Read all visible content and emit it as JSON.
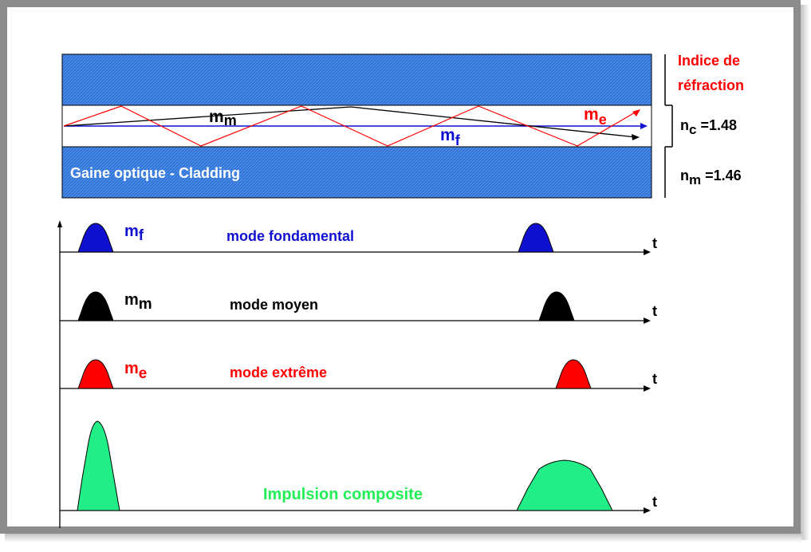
{
  "fiber": {
    "cladding_label": "Gaine optique - Cladding",
    "mode_m": "m",
    "mode_m_sub": "m",
    "mode_f": "m",
    "mode_f_sub": "f",
    "mode_e": "m",
    "mode_e_sub": "e"
  },
  "index": {
    "title_line1": "Indice de",
    "title_line2": "réfraction",
    "core_n": "n",
    "core_sub": "c",
    "core_value": " =1.48",
    "clad_n": "n",
    "clad_sub": "m",
    "clad_value": " =1.46"
  },
  "timelines": {
    "axis_label": "t",
    "fund_sym": "m",
    "fund_sub": "f",
    "fund_label": "mode fondamental",
    "mid_sym": "m",
    "mid_sub": "m",
    "mid_label": "mode moyen",
    "ext_sym": "m",
    "ext_sub": "e",
    "ext_label": "mode extrême",
    "composite_label": "Impulsion composite"
  },
  "colors": {
    "cladding_blue": "#2a6fd8",
    "fundamental": "#1010d0",
    "medium": "#000000",
    "extreme": "#ff0000",
    "composite": "#22ee88"
  }
}
